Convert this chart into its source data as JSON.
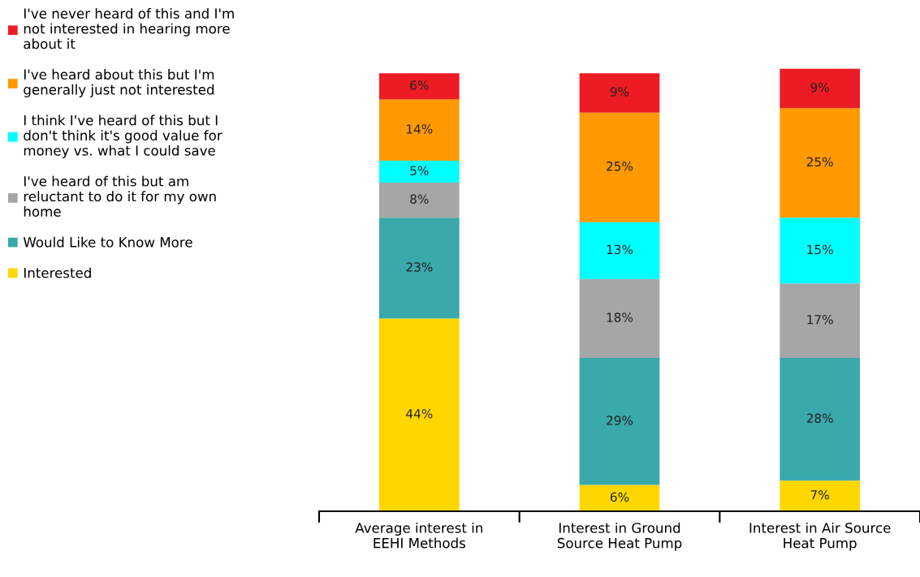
{
  "chart_data": {
    "type": "bar",
    "stacked": true,
    "legend": "left",
    "grid": false,
    "categories": [
      "Average interest in\nEEHI Methods",
      "Interest in Ground\nSource Heat Pump",
      "Interest in Air Source\nHeat Pump"
    ],
    "series": [
      {
        "name": "Interested",
        "color": "#ffd700",
        "values": [
          44,
          6,
          7
        ],
        "value_labels": [
          "44%",
          "6%",
          "7%"
        ]
      },
      {
        "name": "Would Like to Know More",
        "color": "#3aa9ac",
        "values": [
          23,
          29,
          28
        ],
        "value_labels": [
          "23%",
          "29%",
          "28%"
        ]
      },
      {
        "name": "I've heard of this but am\nreluctant to do it for my own\nhome",
        "color": "#a6a6a6",
        "values": [
          8,
          18,
          17
        ],
        "value_labels": [
          "8%",
          "18%",
          "17%"
        ]
      },
      {
        "name": "I think I've heard of this but I\ndon't think it's good value for\nmoney vs. what I could save",
        "color": "#00ffff",
        "values": [
          5,
          13,
          15
        ],
        "value_labels": [
          "5%",
          "13%",
          "15%"
        ]
      },
      {
        "name": "I've heard about this but I'm\ngenerally just not interested",
        "color": "#ff9900",
        "values": [
          14,
          25,
          25
        ],
        "value_labels": [
          "14%",
          "25%",
          "25%"
        ]
      },
      {
        "name": "I've never heard of this and I'm\nnot interested in hearing more\nabout it",
        "color": "#ed1c24",
        "values": [
          6,
          9,
          9
        ],
        "value_labels": [
          "6%",
          "9%",
          "9%"
        ]
      }
    ]
  }
}
